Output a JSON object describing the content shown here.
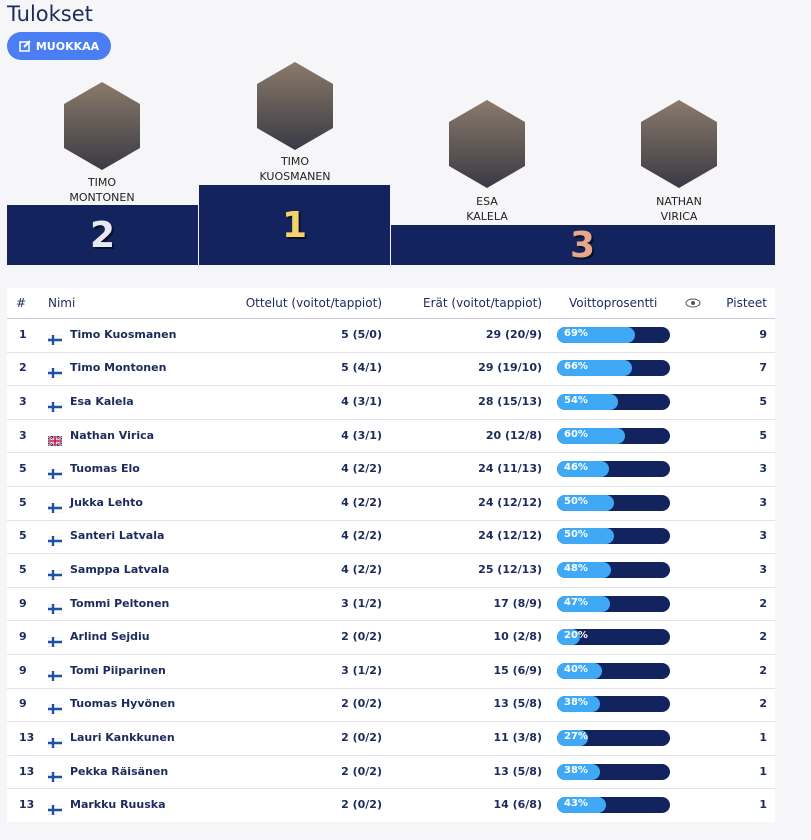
{
  "header": {
    "title": "Tulokset",
    "edit_button": "MUOKKAA"
  },
  "podium": [
    {
      "place": 2,
      "name_lines": [
        "TIMO",
        "MONTONEN"
      ]
    },
    {
      "place": 1,
      "name_lines": [
        "TIMO",
        "KUOSMANEN"
      ]
    },
    {
      "place": 3,
      "name_lines": [
        "ESA",
        "KALELA"
      ]
    },
    {
      "place": 3,
      "name_lines": [
        "NATHAN",
        "VIRICA"
      ]
    }
  ],
  "table": {
    "columns": [
      "#",
      "Nimi",
      "Ottelut (voitot/tappiot)",
      "Erät (voitot/tappiot)",
      "Voittoprosentti",
      "Pisteet"
    ],
    "rows": [
      {
        "rank": 1,
        "flag": "fi",
        "name": "Timo Kuosmanen",
        "matches": "5 (5/0)",
        "sets": "29 (20/9)",
        "win_pct": 69,
        "win_pct_label": "69%",
        "points": 9
      },
      {
        "rank": 2,
        "flag": "fi",
        "name": "Timo Montonen",
        "matches": "5 (4/1)",
        "sets": "29 (19/10)",
        "win_pct": 66,
        "win_pct_label": "66%",
        "points": 7
      },
      {
        "rank": 3,
        "flag": "fi",
        "name": "Esa Kalela",
        "matches": "4 (3/1)",
        "sets": "28 (15/13)",
        "win_pct": 54,
        "win_pct_label": "54%",
        "points": 5
      },
      {
        "rank": 3,
        "flag": "gb",
        "name": "Nathan Virica",
        "matches": "4 (3/1)",
        "sets": "20 (12/8)",
        "win_pct": 60,
        "win_pct_label": "60%",
        "points": 5
      },
      {
        "rank": 5,
        "flag": "fi",
        "name": "Tuomas Elo",
        "matches": "4 (2/2)",
        "sets": "24 (11/13)",
        "win_pct": 46,
        "win_pct_label": "46%",
        "points": 3
      },
      {
        "rank": 5,
        "flag": "fi",
        "name": "Jukka Lehto",
        "matches": "4 (2/2)",
        "sets": "24 (12/12)",
        "win_pct": 50,
        "win_pct_label": "50%",
        "points": 3
      },
      {
        "rank": 5,
        "flag": "fi",
        "name": "Santeri Latvala",
        "matches": "4 (2/2)",
        "sets": "24 (12/12)",
        "win_pct": 50,
        "win_pct_label": "50%",
        "points": 3
      },
      {
        "rank": 5,
        "flag": "fi",
        "name": "Samppa Latvala",
        "matches": "4 (2/2)",
        "sets": "25 (12/13)",
        "win_pct": 48,
        "win_pct_label": "48%",
        "points": 3
      },
      {
        "rank": 9,
        "flag": "fi",
        "name": "Tommi Peltonen",
        "matches": "3 (1/2)",
        "sets": "17 (8/9)",
        "win_pct": 47,
        "win_pct_label": "47%",
        "points": 2
      },
      {
        "rank": 9,
        "flag": "fi",
        "name": "Arlind Sejdiu",
        "matches": "2 (0/2)",
        "sets": "10 (2/8)",
        "win_pct": 20,
        "win_pct_label": "20%",
        "points": 2
      },
      {
        "rank": 9,
        "flag": "fi",
        "name": "Tomi Piiparinen",
        "matches": "3 (1/2)",
        "sets": "15 (6/9)",
        "win_pct": 40,
        "win_pct_label": "40%",
        "points": 2
      },
      {
        "rank": 9,
        "flag": "fi",
        "name": "Tuomas Hyvönen",
        "matches": "2 (0/2)",
        "sets": "13 (5/8)",
        "win_pct": 38,
        "win_pct_label": "38%",
        "points": 2
      },
      {
        "rank": 13,
        "flag": "fi",
        "name": "Lauri Kankkunen",
        "matches": "2 (0/2)",
        "sets": "11 (3/8)",
        "win_pct": 27,
        "win_pct_label": "27%",
        "points": 1
      },
      {
        "rank": 13,
        "flag": "fi",
        "name": "Pekka Räisänen",
        "matches": "2 (0/2)",
        "sets": "13 (5/8)",
        "win_pct": 38,
        "win_pct_label": "38%",
        "points": 1
      },
      {
        "rank": 13,
        "flag": "fi",
        "name": "Markku Ruuska",
        "matches": "2 (0/2)",
        "sets": "14 (6/8)",
        "win_pct": 43,
        "win_pct_label": "43%",
        "points": 1
      }
    ]
  }
}
